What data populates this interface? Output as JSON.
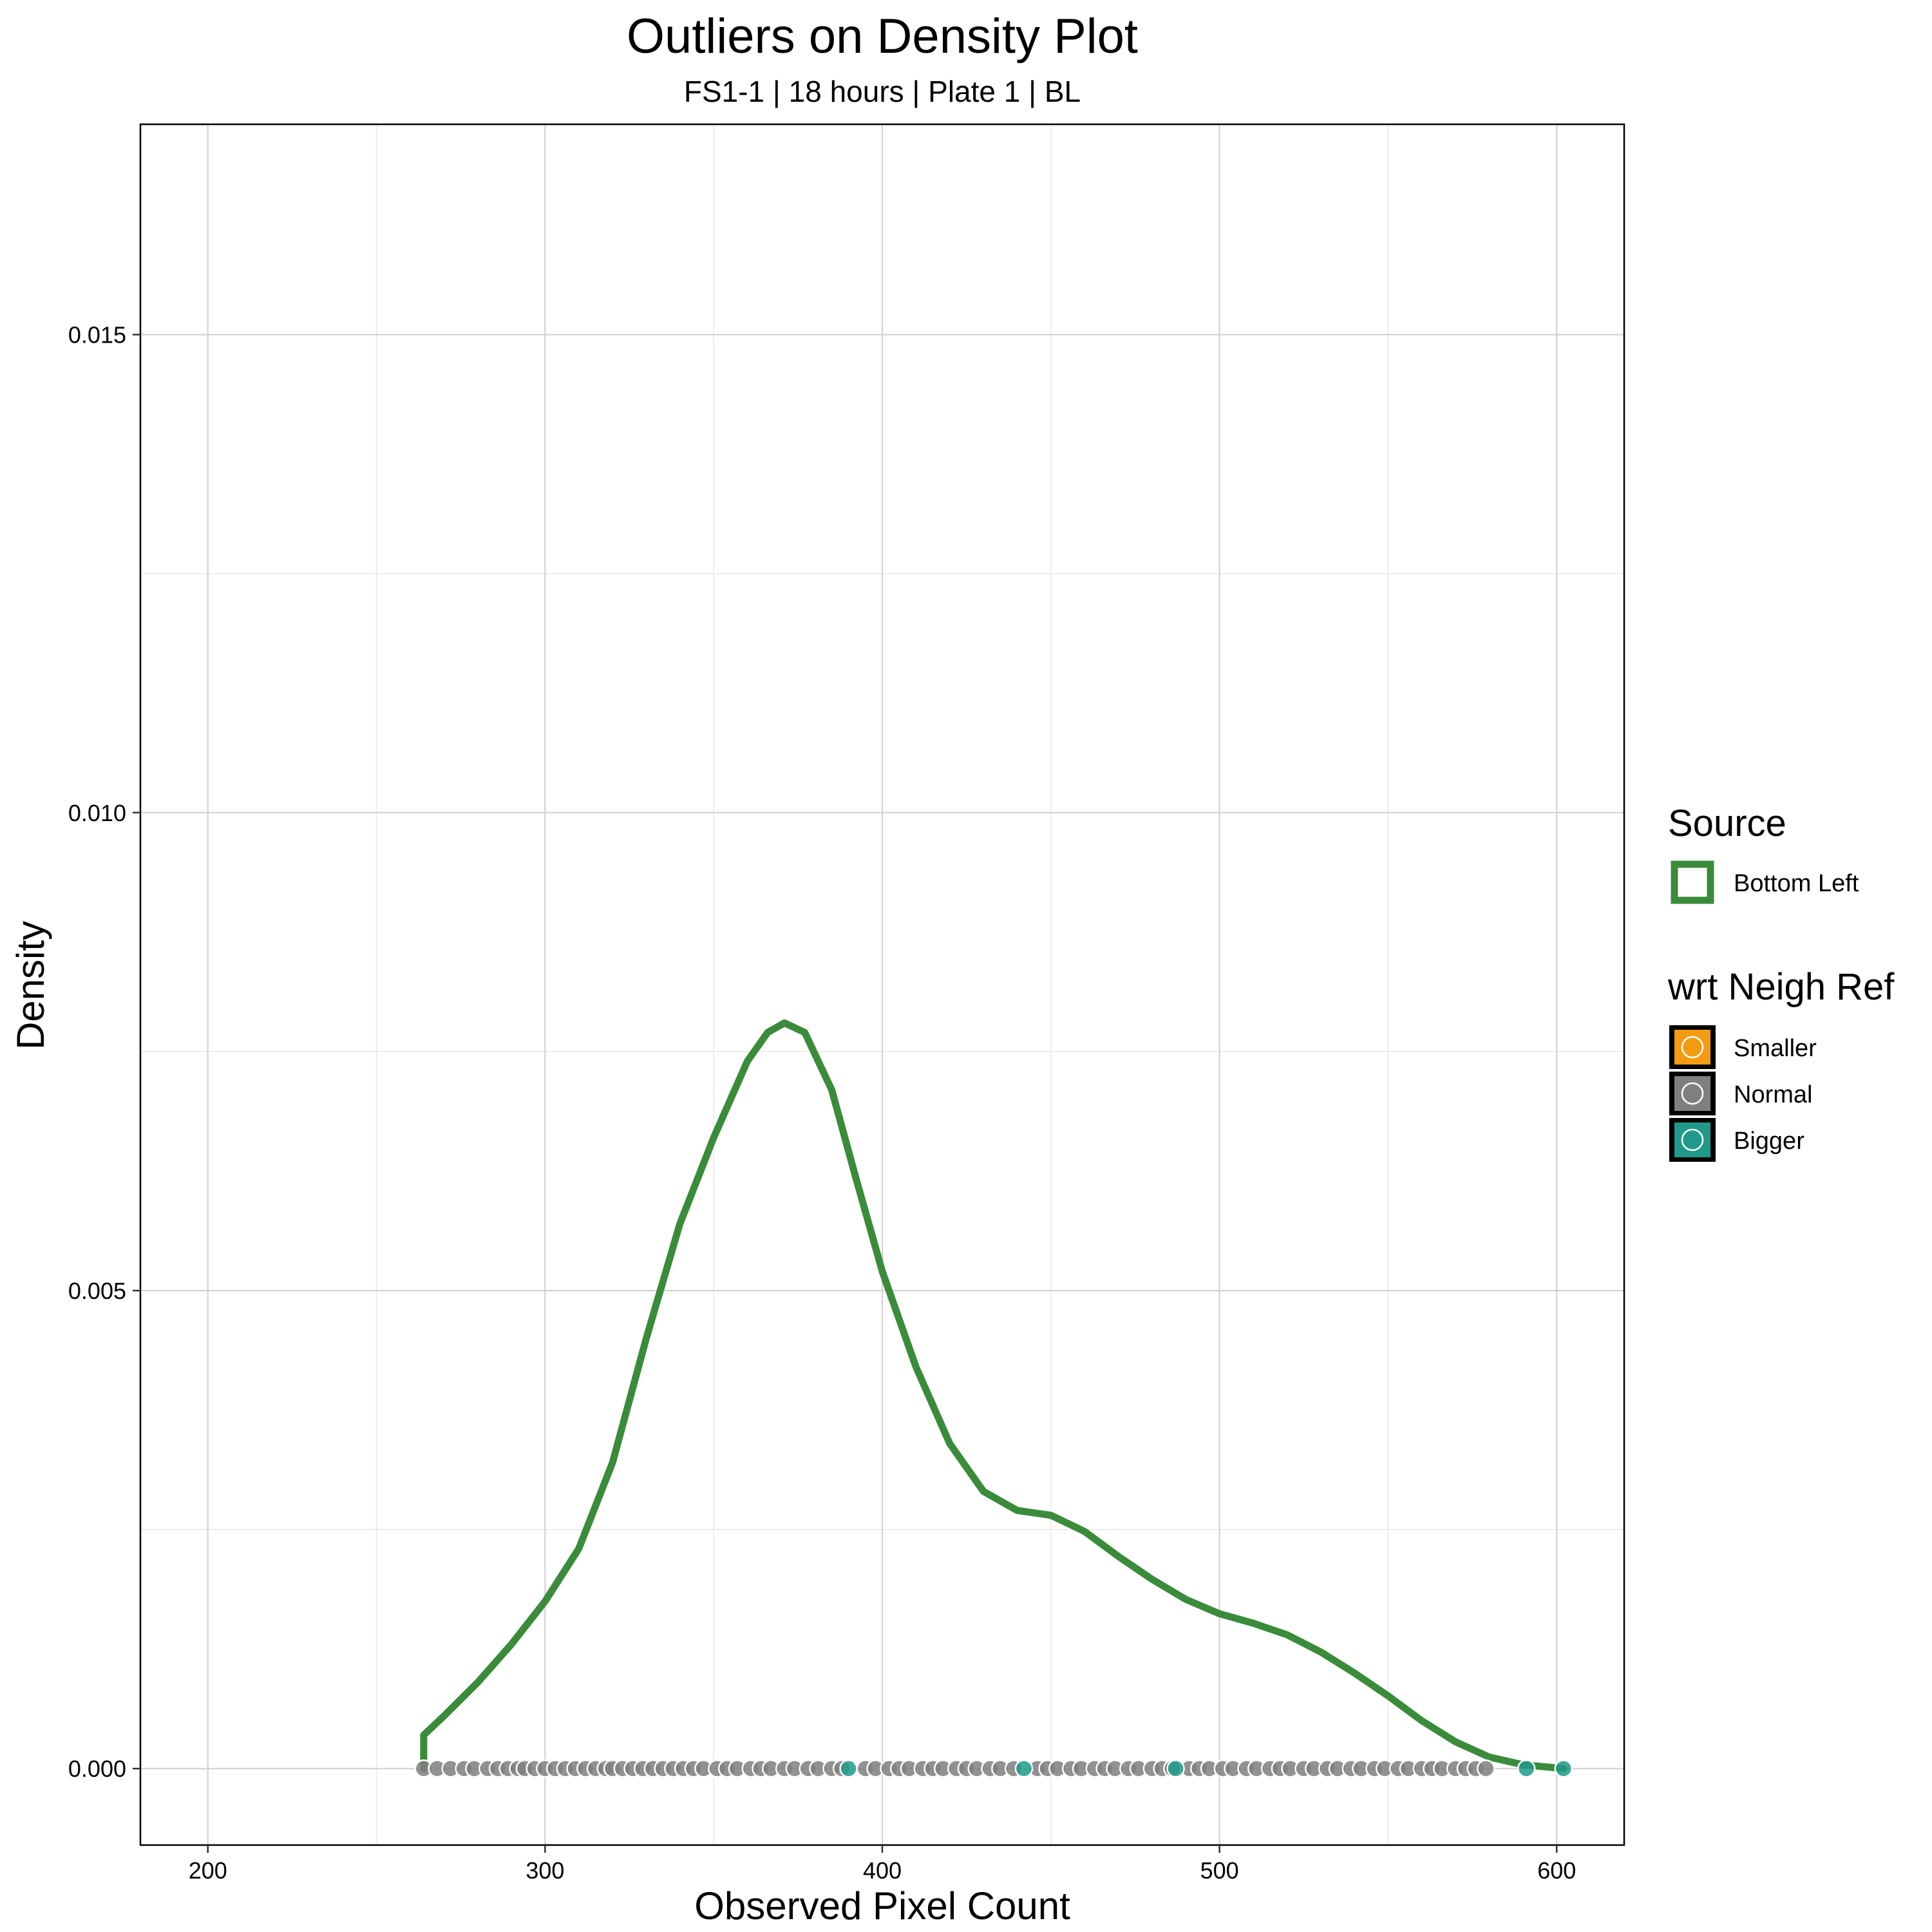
{
  "chart_data": {
    "type": "density",
    "title": "Outliers on Density Plot",
    "subtitle": "FS1-1 | 18 hours | Plate 1 | BL",
    "xlabel": "Observed Pixel Count",
    "ylabel": "Density",
    "xlim": [
      180,
      620
    ],
    "ylim": [
      -0.0008,
      0.0172
    ],
    "x_ticks": [
      200,
      300,
      400,
      500,
      600
    ],
    "x_minor_ticks": [
      250,
      350,
      450,
      550
    ],
    "y_ticks": [
      0.0,
      0.005,
      0.01,
      0.015
    ],
    "y_tick_labels": [
      "0.000",
      "0.005",
      "0.010",
      "0.015"
    ],
    "y_minor_ticks": [
      0.0025,
      0.0075,
      0.0125
    ],
    "grid": true,
    "density_series": {
      "name": "Bottom Left",
      "color": "#3a8b3a",
      "points": [
        [
          264,
          0
        ],
        [
          264,
          0.00035
        ],
        [
          270,
          0.00055
        ],
        [
          280,
          0.0009
        ],
        [
          290,
          0.0013
        ],
        [
          300,
          0.00175
        ],
        [
          310,
          0.0023
        ],
        [
          320,
          0.0032
        ],
        [
          330,
          0.0045
        ],
        [
          340,
          0.0057
        ],
        [
          350,
          0.0066
        ],
        [
          360,
          0.0074
        ],
        [
          366,
          0.0077
        ],
        [
          371,
          0.0078
        ],
        [
          377,
          0.0077
        ],
        [
          385,
          0.0071
        ],
        [
          392,
          0.0062
        ],
        [
          400,
          0.0052
        ],
        [
          410,
          0.0042
        ],
        [
          420,
          0.0034
        ],
        [
          430,
          0.0029
        ],
        [
          440,
          0.0027
        ],
        [
          450,
          0.00265
        ],
        [
          460,
          0.00248
        ],
        [
          470,
          0.00222
        ],
        [
          480,
          0.00198
        ],
        [
          490,
          0.00177
        ],
        [
          500,
          0.00162
        ],
        [
          510,
          0.00152
        ],
        [
          520,
          0.0014
        ],
        [
          530,
          0.00122
        ],
        [
          540,
          0.001
        ],
        [
          550,
          0.00076
        ],
        [
          560,
          0.0005
        ],
        [
          570,
          0.00028
        ],
        [
          580,
          0.00012
        ],
        [
          590,
          4e-05
        ],
        [
          602,
          0.0
        ]
      ]
    },
    "outlier_points": {
      "Normal": [
        264,
        268,
        272,
        276,
        279,
        283,
        286,
        289,
        292,
        294,
        297,
        300,
        303,
        306,
        309,
        312,
        315,
        318,
        320,
        323,
        326,
        329,
        332,
        335,
        338,
        341,
        344,
        347,
        351,
        354,
        357,
        361,
        364,
        367,
        371,
        374,
        378,
        381,
        385,
        388,
        395,
        398,
        402,
        405,
        408,
        412,
        415,
        418,
        422,
        425,
        428,
        432,
        435,
        439,
        446,
        449,
        452,
        456,
        459,
        463,
        466,
        469,
        473,
        476,
        480,
        483,
        486,
        491,
        494,
        497,
        501,
        504,
        508,
        511,
        515,
        518,
        521,
        525,
        528,
        532,
        535,
        539,
        542,
        546,
        549,
        553,
        556,
        560,
        563,
        566,
        570,
        573,
        576,
        579
      ],
      "Smaller": [],
      "Bigger": [
        390,
        442,
        487,
        591,
        602
      ]
    },
    "legends": [
      {
        "title": "Source",
        "entries": [
          {
            "label": "Bottom Left",
            "color": "#3a8b3a"
          }
        ]
      },
      {
        "title": "wrt Neigh Ref",
        "entries": [
          {
            "label": "Smaller",
            "color": "#f39c12"
          },
          {
            "label": "Normal",
            "color": "#7f7f7f"
          },
          {
            "label": "Bigger",
            "color": "#1f9a8a"
          }
        ]
      }
    ],
    "legend_position": "right"
  }
}
